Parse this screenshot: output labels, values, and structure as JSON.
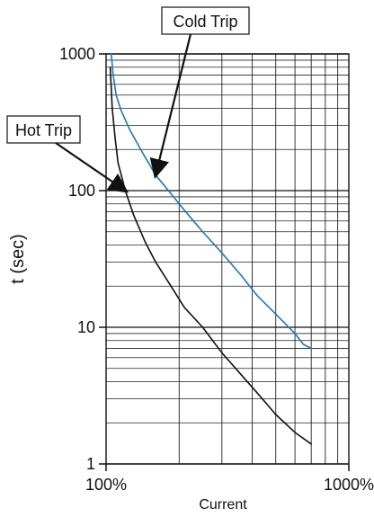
{
  "chart_data": {
    "type": "line",
    "xlabel": "Current",
    "ylabel": "t (sec)",
    "x_scale": "log",
    "y_scale": "log",
    "xlim": [
      1,
      10
    ],
    "ylim": [
      1,
      1000
    ],
    "grid": true,
    "x_ticks": [
      {
        "value": 1,
        "label": "100%"
      },
      {
        "value": 10,
        "label": "1000%"
      }
    ],
    "y_ticks": [
      {
        "value": 1,
        "label": "1"
      },
      {
        "value": 10,
        "label": "10"
      },
      {
        "value": 100,
        "label": "100"
      },
      {
        "value": 1000,
        "label": "1000"
      }
    ],
    "series": [
      {
        "name": "Cold Trip",
        "color": "#1f77b4",
        "points": [
          [
            1.05,
            1000
          ],
          [
            1.07,
            700
          ],
          [
            1.1,
            500
          ],
          [
            1.15,
            390
          ],
          [
            1.25,
            280
          ],
          [
            1.4,
            195
          ],
          [
            1.6,
            130
          ],
          [
            1.85,
            95
          ],
          [
            2.1,
            72
          ],
          [
            2.5,
            50
          ],
          [
            3.0,
            35
          ],
          [
            3.6,
            24
          ],
          [
            4.2,
            17
          ],
          [
            5.0,
            12.5
          ],
          [
            6.0,
            9.0
          ],
          [
            6.5,
            7.5
          ],
          [
            7.0,
            7.0
          ]
        ]
      },
      {
        "name": "Hot Trip",
        "color": "#111111",
        "points": [
          [
            1.04,
            800
          ],
          [
            1.06,
            400
          ],
          [
            1.09,
            240
          ],
          [
            1.12,
            160
          ],
          [
            1.2,
            100
          ],
          [
            1.3,
            66
          ],
          [
            1.45,
            42
          ],
          [
            1.6,
            30
          ],
          [
            1.85,
            20
          ],
          [
            2.1,
            14
          ],
          [
            2.5,
            10
          ],
          [
            3.0,
            6.5
          ],
          [
            3.6,
            4.5
          ],
          [
            4.2,
            3.3
          ],
          [
            5.0,
            2.3
          ],
          [
            6.0,
            1.7
          ],
          [
            7.0,
            1.4
          ]
        ]
      }
    ],
    "annotations": [
      {
        "text": "Cold Trip",
        "target": "Cold Trip"
      },
      {
        "text": "Hot Trip",
        "target": "Hot Trip"
      }
    ]
  }
}
